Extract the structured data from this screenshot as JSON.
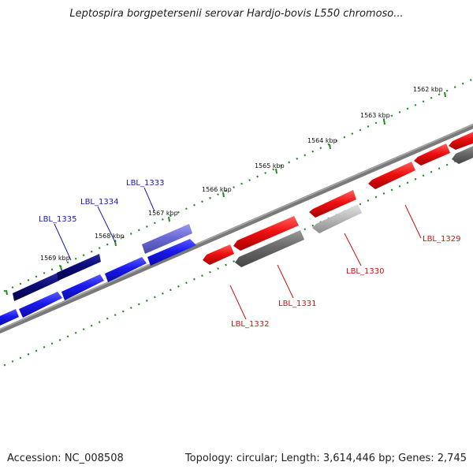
{
  "title": "Leptospira borgpetersenii serovar Hardjo-bovis L550 chromoso...",
  "footer": {
    "accession": "Accession: NC_008508",
    "summary": "Topology: circular; Length: 3,614,446 bp; Genes: 2,745"
  },
  "colors": {
    "backbone": "#7a7a7a",
    "tick": "#1f8a1f",
    "forward_dark": "#0a0a78",
    "forward_blue": "#1a1aee",
    "forward_light": "#6a6ad6",
    "reverse_red": "#ee1111",
    "reverse_grey": "#6a6a6a",
    "reverse_lightgrey": "#b8b8b8",
    "label_forward": "#1a1aaa",
    "label_reverse": "#cc1111"
  },
  "kbp_labels": [
    "1562 kbp",
    "1563 kbp",
    "1564 kbp",
    "1565 kbp",
    "1566 kbp",
    "1567 kbp",
    "1568 kbp",
    "1569 kbp"
  ],
  "gene_labels": [
    "LBL_1335",
    "LBL_1334",
    "LBL_1333",
    "LBL_1332",
    "LBL_1331",
    "LBL_1330",
    "LBL_1329"
  ]
}
